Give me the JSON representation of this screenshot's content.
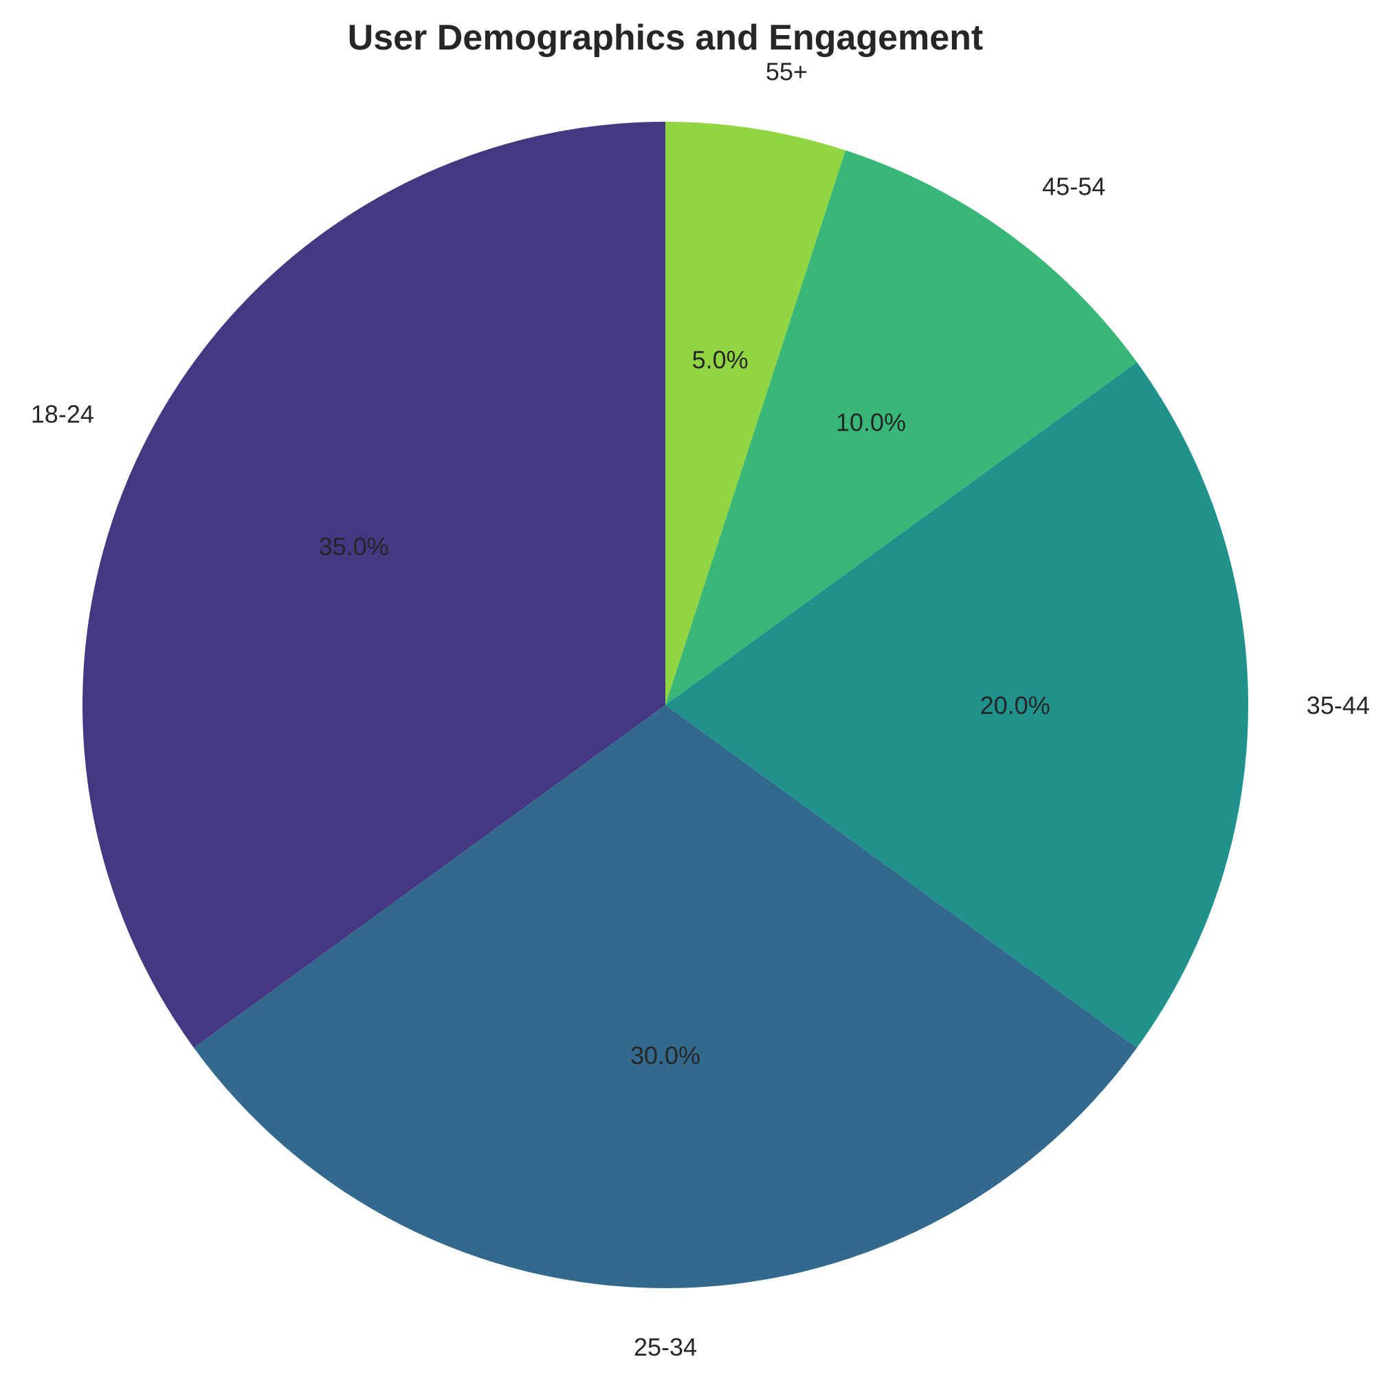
{
  "chart_data": {
    "type": "pie",
    "title": "User Demographics and Engagement",
    "categories": [
      "18-24",
      "25-34",
      "35-44",
      "45-54",
      "55+"
    ],
    "values": [
      35.0,
      30.0,
      20.0,
      10.0,
      5.0
    ],
    "percent_labels": [
      "35.0%",
      "30.0%",
      "20.0%",
      "10.0%",
      "5.0%"
    ],
    "colors": [
      "#453781",
      "#33698c",
      "#21918c",
      "#38b778",
      "#92d542"
    ],
    "start_angle_deg": 90,
    "direction": "counterclockwise",
    "legend": "none"
  }
}
